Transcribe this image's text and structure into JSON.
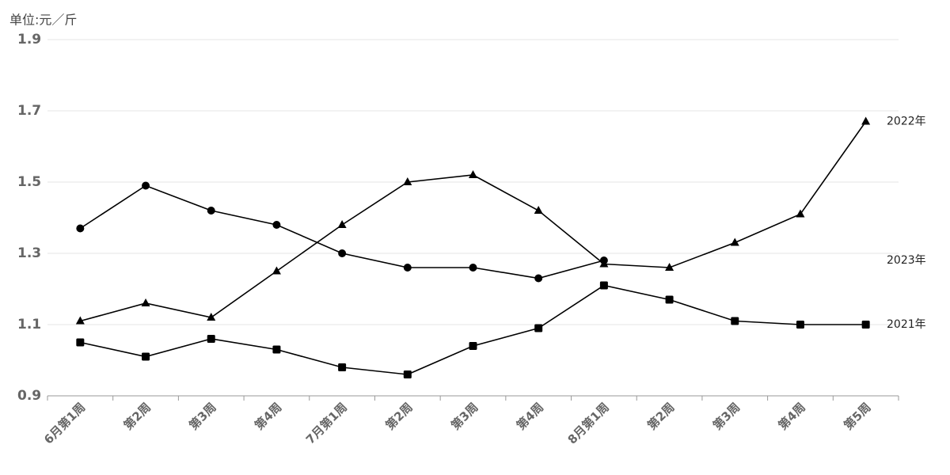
{
  "chart_data": {
    "type": "line",
    "y_axis_label": "单位:元／斤",
    "categories": [
      "6月第1周",
      "第2周",
      "第3周",
      "第4周",
      "7月第1周",
      "第2周",
      "第3周",
      "第4周",
      "8月第1周",
      "第2周",
      "第3周",
      "第4周",
      "第5周"
    ],
    "series": [
      {
        "name": "2022年",
        "color": "#000000",
        "marker": "triangle",
        "values": [
          1.11,
          1.16,
          1.12,
          1.25,
          1.38,
          1.5,
          1.52,
          1.42,
          1.27,
          1.26,
          1.33,
          1.41,
          1.67
        ]
      },
      {
        "name": "2023年",
        "color": "#000000",
        "marker": "circle",
        "values": [
          1.37,
          1.49,
          1.42,
          1.38,
          1.3,
          1.26,
          1.26,
          1.23,
          1.28,
          null,
          null,
          null,
          null
        ]
      },
      {
        "name": "2021年",
        "color": "#000000",
        "marker": "square",
        "values": [
          1.05,
          1.01,
          1.06,
          1.03,
          0.98,
          0.96,
          1.04,
          1.09,
          1.21,
          1.17,
          1.11,
          1.1,
          1.1
        ]
      }
    ],
    "ylim": [
      0.9,
      1.9
    ],
    "yticks": [
      0.9,
      1.1,
      1.3,
      1.5,
      1.7,
      1.9
    ],
    "grid": true
  }
}
